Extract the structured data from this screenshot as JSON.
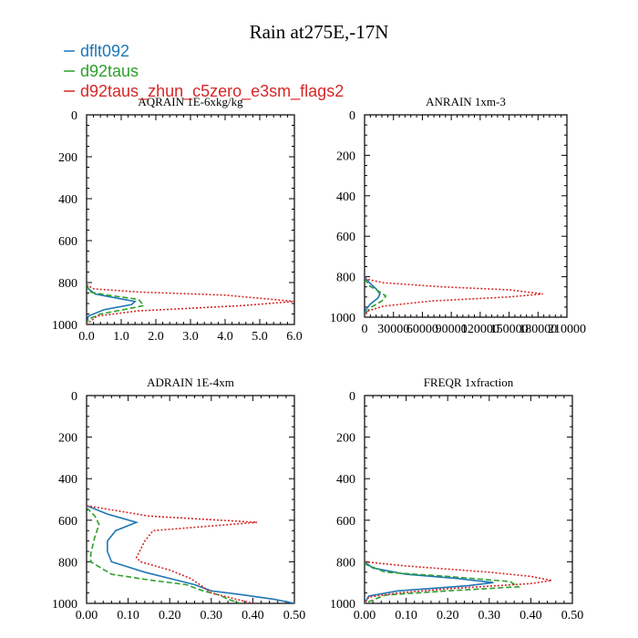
{
  "title": "Rain at275E,-17N",
  "legend": [
    {
      "name": "dflt092",
      "color": "#1f77b4",
      "dash": "solid"
    },
    {
      "name": "d92taus",
      "color": "#2ca02c",
      "dash": "dashed"
    },
    {
      "name": "d92taus_zhun_c5zero_e3sm_flags2",
      "color": "#d62728",
      "dash": "dotted"
    }
  ],
  "chart_data": [
    {
      "type": "line",
      "title": "AQRAIN  1E-6xkg/kg",
      "xlim": [
        0,
        6.0
      ],
      "ylim": [
        1000,
        0
      ],
      "xticks": [
        "0.0",
        "1.0",
        "2.0",
        "3.0",
        "4.0",
        "5.0",
        "6.0"
      ],
      "xtick_values": [
        0,
        1,
        2,
        3,
        4,
        5,
        6
      ],
      "yticks": [
        "0",
        "200",
        "400",
        "600",
        "800",
        "1000"
      ],
      "ytick_values": [
        0,
        200,
        400,
        600,
        800,
        1000
      ],
      "series": [
        {
          "name": "dflt092",
          "points": [
            [
              0,
              800
            ],
            [
              0.05,
              830
            ],
            [
              0.25,
              855
            ],
            [
              0.9,
              875
            ],
            [
              1.4,
              890
            ],
            [
              1.3,
              905
            ],
            [
              0.5,
              930
            ],
            [
              0.05,
              960
            ],
            [
              0,
              1000
            ]
          ]
        },
        {
          "name": "d92taus",
          "points": [
            [
              0,
              810
            ],
            [
              0.1,
              845
            ],
            [
              0.6,
              860
            ],
            [
              1.5,
              880
            ],
            [
              1.65,
              910
            ],
            [
              1.2,
              925
            ],
            [
              0.4,
              950
            ],
            [
              0.05,
              975
            ],
            [
              0,
              1000
            ]
          ]
        },
        {
          "name": "d92taus_zhun_c5zero_e3sm_flags2",
          "points": [
            [
              0,
              810
            ],
            [
              0.2,
              830
            ],
            [
              1.5,
              845
            ],
            [
              4.0,
              860
            ],
            [
              6.0,
              890
            ],
            [
              4.5,
              910
            ],
            [
              1.5,
              935
            ],
            [
              0.3,
              960
            ],
            [
              0,
              1000
            ]
          ]
        }
      ]
    },
    {
      "type": "line",
      "title": "ANRAIN  1xm-3",
      "xlim": [
        0,
        210000
      ],
      "ylim": [
        1000,
        0
      ],
      "xticks": [
        "0",
        "30000",
        "60000",
        "90000",
        "120000",
        "150000",
        "180000",
        "210000"
      ],
      "xtick_values": [
        0,
        30000,
        60000,
        90000,
        120000,
        150000,
        180000,
        210000
      ],
      "yticks": [
        "0",
        "200",
        "400",
        "600",
        "800",
        "1000"
      ],
      "ytick_values": [
        0,
        200,
        400,
        600,
        800,
        1000
      ],
      "series": [
        {
          "name": "dflt092",
          "points": [
            [
              0,
              800
            ],
            [
              5000,
              830
            ],
            [
              12000,
              860
            ],
            [
              16000,
              885
            ],
            [
              14000,
              905
            ],
            [
              6000,
              935
            ],
            [
              1000,
              965
            ],
            [
              0,
              1000
            ]
          ]
        },
        {
          "name": "d92taus",
          "points": [
            [
              0,
              810
            ],
            [
              5000,
              845
            ],
            [
              14000,
              870
            ],
            [
              22000,
              895
            ],
            [
              18000,
              920
            ],
            [
              7000,
              950
            ],
            [
              1000,
              980
            ],
            [
              0,
              1000
            ]
          ]
        },
        {
          "name": "d92taus_zhun_c5zero_e3sm_flags2",
          "points": [
            [
              0,
              810
            ],
            [
              20000,
              830
            ],
            [
              80000,
              850
            ],
            [
              150000,
              865
            ],
            [
              185000,
              885
            ],
            [
              150000,
              900
            ],
            [
              70000,
              920
            ],
            [
              20000,
              945
            ],
            [
              3000,
              970
            ],
            [
              0,
              1000
            ]
          ]
        }
      ]
    },
    {
      "type": "line",
      "title": "ADRAIN  1E-4xm",
      "xlim": [
        0,
        0.5
      ],
      "ylim": [
        1000,
        0
      ],
      "xticks": [
        "0.00",
        "0.10",
        "0.20",
        "0.30",
        "0.40",
        "0.50"
      ],
      "xtick_values": [
        0,
        0.1,
        0.2,
        0.3,
        0.4,
        0.5
      ],
      "yticks": [
        "0",
        "200",
        "400",
        "600",
        "800",
        "1000"
      ],
      "ytick_values": [
        0,
        200,
        400,
        600,
        800,
        1000
      ],
      "series": [
        {
          "name": "dflt092",
          "points": [
            [
              0,
              530
            ],
            [
              0.05,
              570
            ],
            [
              0.12,
              610
            ],
            [
              0.07,
              650
            ],
            [
              0.05,
              700
            ],
            [
              0.05,
              750
            ],
            [
              0.06,
              800
            ],
            [
              0.14,
              850
            ],
            [
              0.22,
              890
            ],
            [
              0.26,
              910
            ],
            [
              0.3,
              940
            ],
            [
              0.38,
              960
            ],
            [
              0.45,
              980
            ],
            [
              0.5,
              1000
            ]
          ]
        },
        {
          "name": "d92taus",
          "points": [
            [
              0,
              540
            ],
            [
              0.02,
              580
            ],
            [
              0.03,
              620
            ],
            [
              0.02,
              680
            ],
            [
              0.01,
              760
            ],
            [
              0.01,
              800
            ],
            [
              0.06,
              860
            ],
            [
              0.16,
              890
            ],
            [
              0.24,
              910
            ],
            [
              0.28,
              940
            ],
            [
              0.32,
              960
            ],
            [
              0.34,
              980
            ],
            [
              0.37,
              1000
            ]
          ]
        },
        {
          "name": "d92taus_zhun_c5zero_e3sm_flags2",
          "points": [
            [
              0,
              530
            ],
            [
              0.15,
              580
            ],
            [
              0.41,
              610
            ],
            [
              0.16,
              650
            ],
            [
              0.14,
              700
            ],
            [
              0.12,
              780
            ],
            [
              0.13,
              800
            ],
            [
              0.2,
              840
            ],
            [
              0.25,
              880
            ],
            [
              0.28,
              920
            ],
            [
              0.3,
              950
            ],
            [
              0.35,
              975
            ],
            [
              0.4,
              1000
            ]
          ]
        }
      ]
    },
    {
      "type": "line",
      "title": "FREQR  1xfraction",
      "xlim": [
        0,
        0.5
      ],
      "ylim": [
        1000,
        0
      ],
      "xticks": [
        "0.00",
        "0.10",
        "0.20",
        "0.30",
        "0.40",
        "0.50"
      ],
      "xtick_values": [
        0,
        0.1,
        0.2,
        0.3,
        0.4,
        0.5
      ],
      "yticks": [
        "0",
        "200",
        "400",
        "600",
        "800",
        "1000"
      ],
      "ytick_values": [
        0,
        200,
        400,
        600,
        800,
        1000
      ],
      "series": [
        {
          "name": "dflt092",
          "points": [
            [
              0,
              800
            ],
            [
              0.02,
              830
            ],
            [
              0.1,
              860
            ],
            [
              0.22,
              880
            ],
            [
              0.31,
              900
            ],
            [
              0.25,
              915
            ],
            [
              0.08,
              940
            ],
            [
              0.01,
              965
            ],
            [
              0,
              1000
            ]
          ]
        },
        {
          "name": "d92taus",
          "points": [
            [
              0,
              810
            ],
            [
              0.05,
              850
            ],
            [
              0.2,
              870
            ],
            [
              0.35,
              895
            ],
            [
              0.37,
              920
            ],
            [
              0.2,
              940
            ],
            [
              0.05,
              960
            ],
            [
              0,
              1000
            ]
          ]
        },
        {
          "name": "d92taus_zhun_c5zero_e3sm_flags2",
          "points": [
            [
              0,
              800
            ],
            [
              0.1,
              820
            ],
            [
              0.3,
              850
            ],
            [
              0.4,
              870
            ],
            [
              0.45,
              890
            ],
            [
              0.4,
              905
            ],
            [
              0.2,
              930
            ],
            [
              0.08,
              950
            ],
            [
              0.01,
              970
            ],
            [
              0,
              1000
            ]
          ]
        }
      ]
    }
  ]
}
